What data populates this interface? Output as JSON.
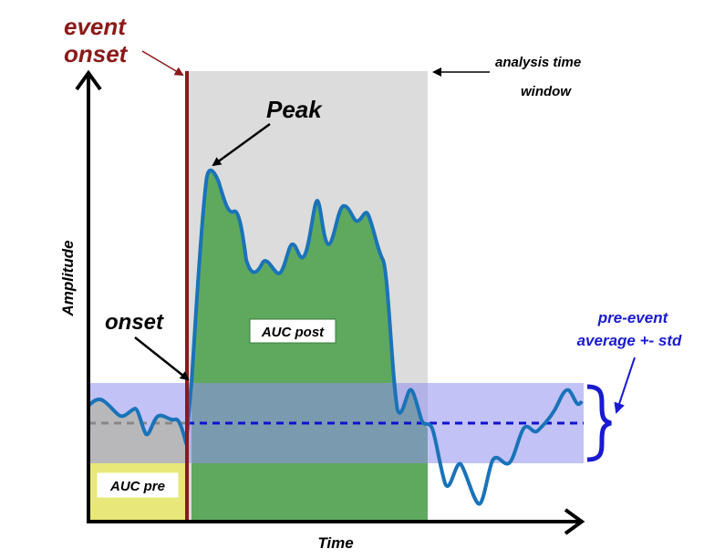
{
  "labels": {
    "event_onset_line1": "event",
    "event_onset_line2": "onset",
    "analysis_window_line1": "analysis time",
    "analysis_window_line2": "window",
    "peak": "Peak",
    "onset": "onset",
    "auc_post": "AUC post",
    "auc_pre": "AUC pre",
    "pre_event_line1": "pre-event",
    "pre_event_line2": "average +- std",
    "x_axis": "Time",
    "y_axis": "Amplitude"
  },
  "colors": {
    "event_onset": "#8b1a1a",
    "analysis_window": "#dcdcdc",
    "auc_post": "#5fa95f",
    "auc_pre": "#e8e87a",
    "std_band": "#b4b4f5",
    "signal": "#1a73b8",
    "mean_line": "#1010d0",
    "pre_event_text": "#1a1ad0",
    "axis": "#000000"
  }
}
